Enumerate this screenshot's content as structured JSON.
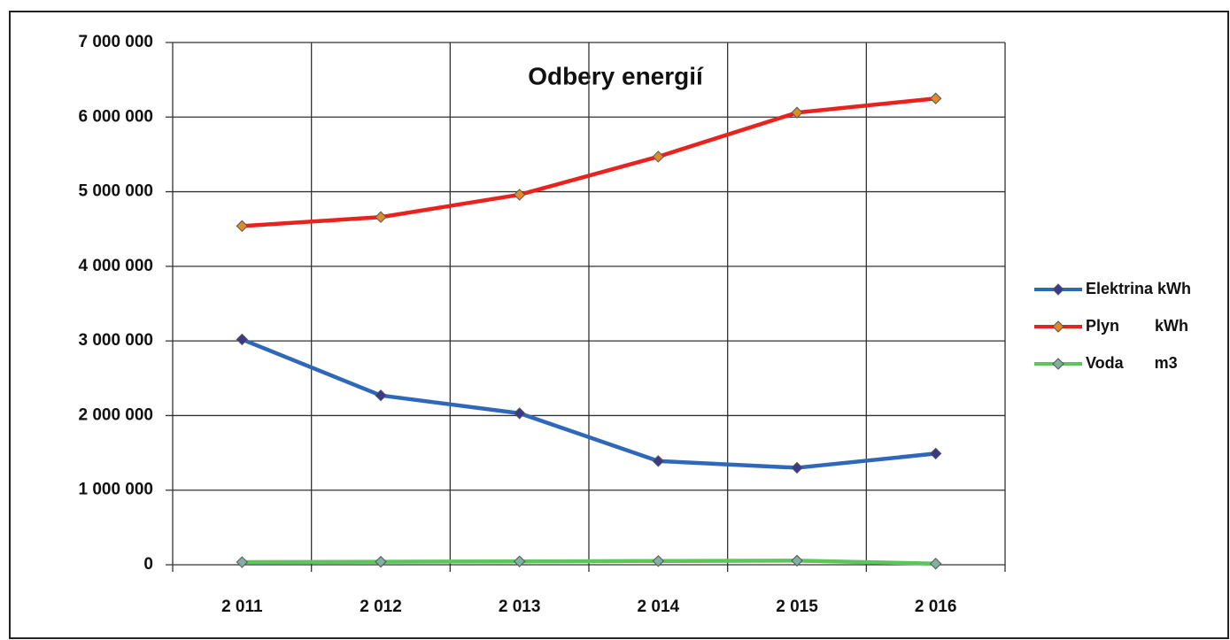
{
  "chart_data": {
    "type": "line",
    "title": "Odbery energií",
    "categories": [
      "2 011",
      "2 012",
      "2 013",
      "2 014",
      "2 015",
      "2 016"
    ],
    "series": [
      {
        "name": "Elektrina kWh",
        "color": "#2f68b8",
        "marker_color": "#3a3a8c",
        "values": [
          3020000,
          2270000,
          2030000,
          1390000,
          1300000,
          1490000
        ]
      },
      {
        "name": "Plyn        kWh",
        "color": "#e8231e",
        "marker_color": "#e08a2a",
        "values": [
          4540000,
          4660000,
          4960000,
          5470000,
          6060000,
          6250000
        ]
      },
      {
        "name": "Voda       m3",
        "color": "#5cc55c",
        "marker_color": "#7fb0a0",
        "values": [
          35000,
          40000,
          45000,
          50000,
          55000,
          15000
        ]
      }
    ],
    "ylim": [
      0,
      7000000
    ],
    "yticks": [
      {
        "value": 0,
        "label": "0"
      },
      {
        "value": 1000000,
        "label": "1 000 000"
      },
      {
        "value": 2000000,
        "label": "2 000 000"
      },
      {
        "value": 3000000,
        "label": "3 000 000"
      },
      {
        "value": 4000000,
        "label": "4 000 000"
      },
      {
        "value": 5000000,
        "label": "5 000 000"
      },
      {
        "value": 6000000,
        "label": "6 000 000"
      },
      {
        "value": 7000000,
        "label": "7 000 000"
      }
    ],
    "grid": true,
    "legend": "right"
  }
}
